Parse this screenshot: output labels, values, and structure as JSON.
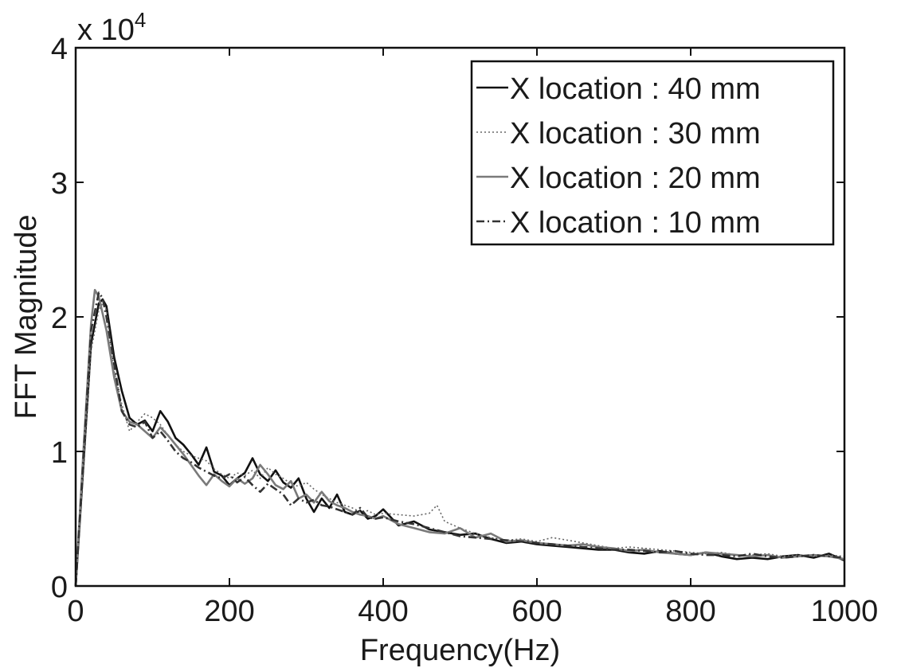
{
  "chart_data": {
    "type": "line",
    "xlabel": "Frequency(Hz)",
    "ylabel": "FFT Magnitude",
    "y_multiplier_label": "x 10",
    "y_multiplier_exponent": "4",
    "xlim": [
      0,
      1000
    ],
    "ylim": [
      0,
      40000
    ],
    "x_ticks": [
      0,
      200,
      400,
      600,
      800,
      1000
    ],
    "x_tick_labels": [
      "0",
      "200",
      "400",
      "600",
      "800",
      "1000"
    ],
    "y_ticks": [
      0,
      10000,
      20000,
      30000,
      40000
    ],
    "y_tick_labels": [
      "0",
      "1",
      "2",
      "3",
      "4"
    ],
    "grid": false,
    "legend_position": "top-right",
    "series": [
      {
        "name": "X location : 40 mm",
        "color": "#111111",
        "dash": "solid",
        "x": [
          0,
          10,
          20,
          30,
          35,
          40,
          50,
          60,
          70,
          80,
          90,
          100,
          110,
          120,
          130,
          140,
          150,
          160,
          170,
          180,
          190,
          200,
          210,
          220,
          230,
          240,
          250,
          260,
          270,
          280,
          290,
          300,
          310,
          320,
          330,
          340,
          350,
          360,
          370,
          380,
          390,
          400,
          420,
          440,
          460,
          480,
          500,
          520,
          540,
          560,
          580,
          600,
          620,
          640,
          660,
          680,
          700,
          720,
          740,
          760,
          780,
          800,
          820,
          840,
          860,
          880,
          900,
          920,
          940,
          960,
          980,
          1000
        ],
        "y": [
          0,
          9000,
          18000,
          21000,
          21300,
          20800,
          17000,
          14500,
          12500,
          12000,
          12300,
          11500,
          13000,
          12200,
          11000,
          10500,
          9800,
          9000,
          10300,
          8500,
          8200,
          7500,
          8000,
          8400,
          9500,
          8300,
          7800,
          8600,
          7700,
          7300,
          8000,
          6500,
          5500,
          6500,
          5800,
          6800,
          5500,
          5300,
          5600,
          5000,
          5200,
          5700,
          4500,
          4800,
          4200,
          4000,
          3800,
          3900,
          3500,
          3200,
          3300,
          3100,
          3000,
          2900,
          2800,
          2700,
          2700,
          2500,
          2400,
          2600,
          2400,
          2300,
          2500,
          2200,
          2000,
          2100,
          2000,
          2200,
          2300,
          2100,
          2400,
          1900
        ]
      },
      {
        "name": "X location : 30 mm",
        "color": "#666666",
        "dash": "dotted",
        "x": [
          0,
          10,
          20,
          30,
          35,
          40,
          50,
          60,
          70,
          80,
          90,
          100,
          110,
          120,
          130,
          140,
          150,
          160,
          170,
          180,
          190,
          200,
          210,
          220,
          230,
          240,
          250,
          260,
          270,
          280,
          290,
          300,
          310,
          320,
          330,
          340,
          350,
          360,
          370,
          380,
          390,
          400,
          420,
          440,
          460,
          470,
          480,
          500,
          520,
          540,
          560,
          580,
          600,
          620,
          640,
          660,
          680,
          700,
          720,
          740,
          760,
          780,
          800,
          820,
          840,
          860,
          880,
          900,
          920,
          940,
          960,
          980,
          1000
        ],
        "y": [
          0,
          8500,
          17500,
          20500,
          21000,
          20500,
          16000,
          13500,
          11500,
          12200,
          12800,
          12500,
          12000,
          11200,
          10500,
          10000,
          9700,
          9500,
          9300,
          8700,
          8300,
          8000,
          8400,
          8200,
          8600,
          8000,
          8800,
          8300,
          8000,
          7600,
          7400,
          7700,
          7200,
          6800,
          6500,
          6200,
          6000,
          5800,
          5500,
          5600,
          5300,
          5400,
          5300,
          5200,
          5400,
          6000,
          4800,
          4300,
          3900,
          3600,
          3400,
          3500,
          3300,
          3600,
          3400,
          3200,
          3000,
          2800,
          2900,
          2800,
          2700,
          2600,
          2500,
          2400,
          2500,
          2300,
          2300,
          2400,
          2200,
          2300,
          2200,
          2300,
          2200
        ]
      },
      {
        "name": "X location : 20 mm",
        "color": "#7a7a7a",
        "dash": "solid",
        "x": [
          0,
          10,
          20,
          25,
          30,
          40,
          50,
          60,
          70,
          80,
          90,
          100,
          110,
          120,
          130,
          140,
          150,
          160,
          170,
          180,
          190,
          200,
          210,
          220,
          230,
          240,
          250,
          260,
          270,
          280,
          290,
          300,
          310,
          320,
          330,
          340,
          350,
          360,
          370,
          380,
          390,
          400,
          420,
          440,
          460,
          480,
          500,
          520,
          540,
          560,
          580,
          600,
          620,
          640,
          660,
          680,
          700,
          720,
          740,
          760,
          780,
          800,
          820,
          840,
          860,
          880,
          900,
          920,
          940,
          960,
          980,
          1000
        ],
        "y": [
          0,
          10000,
          19500,
          22000,
          21500,
          19000,
          15500,
          13000,
          12200,
          12000,
          11500,
          11000,
          11800,
          11200,
          10500,
          9800,
          9000,
          8200,
          7500,
          8300,
          7800,
          7400,
          8000,
          7600,
          8000,
          9000,
          8300,
          7500,
          7200,
          7800,
          6500,
          6800,
          6200,
          7000,
          6300,
          6000,
          5800,
          5500,
          5300,
          5200,
          5000,
          5200,
          4600,
          4300,
          4000,
          3900,
          4300,
          3600,
          3900,
          3300,
          3400,
          3200,
          3100,
          3000,
          3100,
          2900,
          2800,
          2600,
          2700,
          2500,
          2400,
          2300,
          2500,
          2400,
          2300,
          2200,
          2300,
          2100,
          2200,
          2300,
          2200,
          2000
        ]
      },
      {
        "name": "X location : 10 mm",
        "color": "#333333",
        "dash": "dashdot",
        "x": [
          0,
          10,
          20,
          30,
          35,
          40,
          50,
          60,
          70,
          80,
          90,
          100,
          110,
          120,
          130,
          140,
          150,
          160,
          170,
          180,
          190,
          200,
          210,
          220,
          230,
          240,
          250,
          260,
          270,
          280,
          290,
          300,
          310,
          320,
          330,
          340,
          350,
          360,
          370,
          380,
          390,
          400,
          420,
          440,
          460,
          480,
          500,
          520,
          540,
          560,
          580,
          600,
          620,
          640,
          660,
          680,
          700,
          720,
          740,
          760,
          780,
          800,
          820,
          840,
          860,
          880,
          900,
          920,
          940,
          960,
          980,
          1000
        ],
        "y": [
          0,
          9500,
          19000,
          21800,
          21400,
          20000,
          16500,
          13000,
          12000,
          11800,
          12200,
          11000,
          11500,
          10800,
          10000,
          9500,
          9200,
          8800,
          8500,
          8200,
          8000,
          8300,
          7700,
          8100,
          7500,
          7000,
          7600,
          7200,
          6800,
          6000,
          6500,
          6200,
          6400,
          6000,
          5900,
          5700,
          5500,
          5300,
          5800,
          5100,
          5000,
          5100,
          4800,
          4600,
          4300,
          4000,
          3700,
          3600,
          3500,
          3400,
          3300,
          3200,
          3100,
          3000,
          2900,
          2800,
          2700,
          2700,
          2600,
          2500,
          2600,
          2400,
          2300,
          2300,
          2200,
          2400,
          2200,
          2100,
          2200,
          2300,
          2200,
          2100
        ]
      }
    ]
  }
}
